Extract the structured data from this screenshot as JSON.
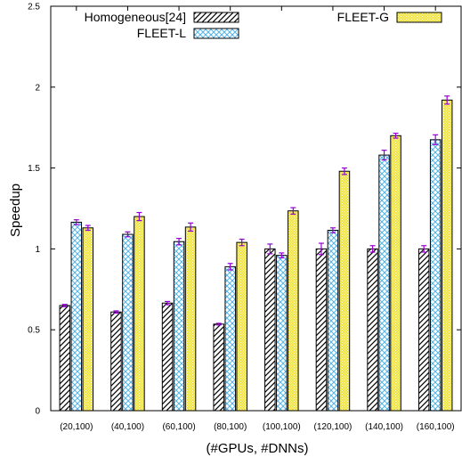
{
  "chart_data": {
    "type": "bar",
    "xlabel": "(#GPUs, #DNNs)",
    "ylabel": "Speedup",
    "ylim": [
      0,
      2.5
    ],
    "yticks": [
      "0",
      "0.5",
      "1",
      "1.5",
      "2",
      "2.5"
    ],
    "categories": [
      "(20,100)",
      "(40,100)",
      "(60,100)",
      "(80,100)",
      "(100,100)",
      "(120,100)",
      "(140,100)",
      "(160,100)"
    ],
    "series": [
      {
        "name": "Homogeneous[24]",
        "pattern": "diagonal-hatch",
        "color": "#000000",
        "values": [
          0.65,
          0.61,
          0.665,
          0.535,
          1.0,
          1.0,
          1.0,
          1.0
        ],
        "errors": [
          0.007,
          0.007,
          0.01,
          0.005,
          0.03,
          0.035,
          0.02,
          0.02
        ]
      },
      {
        "name": "FLEET-L",
        "pattern": "crosshatch",
        "color": "#56b4e9",
        "values": [
          1.165,
          1.09,
          1.045,
          0.89,
          0.96,
          1.115,
          1.58,
          1.675
        ],
        "errors": [
          0.015,
          0.015,
          0.02,
          0.02,
          0.015,
          0.015,
          0.03,
          0.03
        ]
      },
      {
        "name": "FLEET-G",
        "pattern": "dotted-fill",
        "color": "#f0e442",
        "values": [
          1.13,
          1.2,
          1.135,
          1.04,
          1.235,
          1.48,
          1.7,
          1.92
        ],
        "errors": [
          0.015,
          0.025,
          0.025,
          0.02,
          0.02,
          0.02,
          0.015,
          0.025
        ]
      }
    ],
    "error_bar_color": "#9400d3",
    "legend_placement": "top",
    "grid": false
  }
}
